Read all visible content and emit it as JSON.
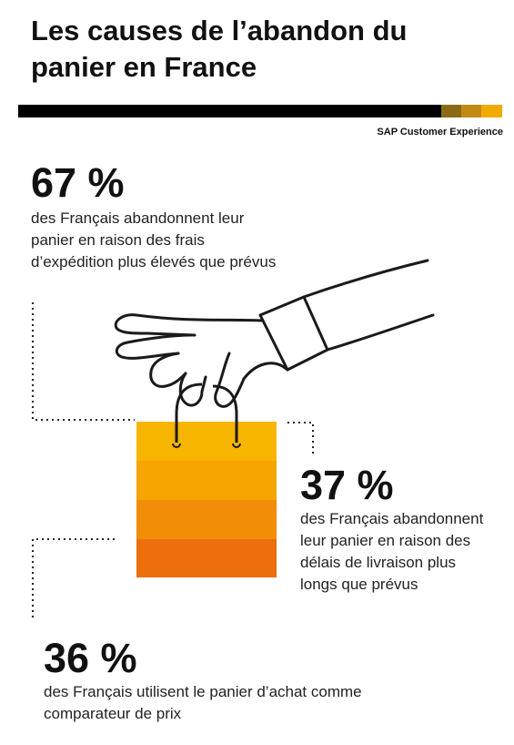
{
  "title": {
    "line1": "Les causes de l’abandon du",
    "line2": "panier en France"
  },
  "brand": "SAP Customer Experience",
  "colors": {
    "rule": "#000000",
    "rule_gold_1": "#8a6a14",
    "rule_gold_2": "#c08a14",
    "rule_gold_3": "#f0ab00",
    "bag_band_1": "#f8b500",
    "bag_band_2": "#f5a400",
    "bag_band_3": "#f28d08",
    "bag_band_4": "#ec6e0c"
  },
  "stats": [
    {
      "value": "67 %",
      "lines": [
        "des Français abandonnent leur",
        "panier en raison des frais",
        "d’expédition plus élevés que prévus"
      ]
    },
    {
      "value": "37 %",
      "lines": [
        "des Français abandonnent",
        "leur panier en raison des",
        "délais de livraison plus",
        "longs que prévus"
      ]
    },
    {
      "value": "36 %",
      "lines": [
        "des Français utilisent le panier d’achat comme",
        "comparateur de prix"
      ]
    }
  ],
  "icons": {
    "illustration": "hand-holding-shopping-bag-icon"
  }
}
